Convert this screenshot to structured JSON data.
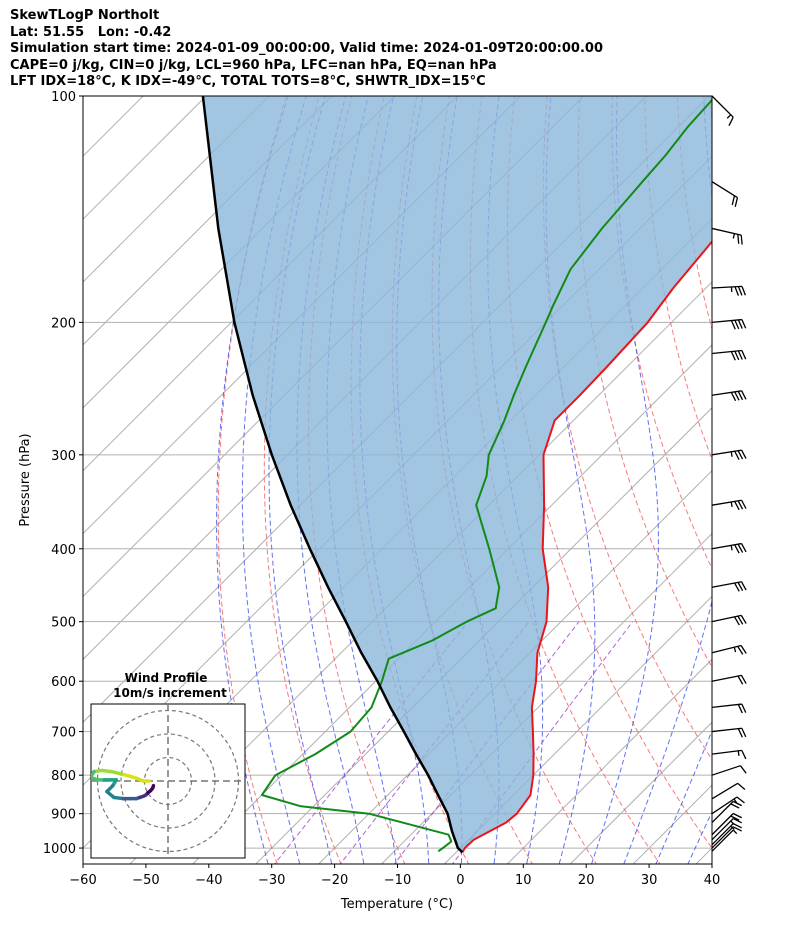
{
  "header": {
    "line1": "SkewTLogP Northolt",
    "line2": "Lat: 51.55   Lon: -0.42",
    "line3": "Simulation start time: 2024-01-09_00:00:00, Valid time: 2024-01-09T20:00:00.00",
    "line4": "CAPE=0 j/kg, CIN=0 j/kg, LCL=960 hPa, LFC=nan hPa, EQ=nan hPa",
    "line5": "LFT IDX=18°C, K IDX=-49°C, TOTAL TOTS=8°C, SHWTR_IDX=15°C"
  },
  "chart_data": {
    "type": "line",
    "xlabel": "Temperature (°C)",
    "ylabel": "Pressure (hPa)",
    "xlim": [
      -60,
      40
    ],
    "ylim": [
      1050,
      100
    ],
    "yscale": "log",
    "x_ticks": [
      "−60",
      "−50",
      "−40",
      "−30",
      "−20",
      "−10",
      "0",
      "10",
      "20",
      "30",
      "40"
    ],
    "y_ticks": [
      "100",
      "200",
      "300",
      "400",
      "500",
      "600",
      "700",
      "800",
      "900",
      "1000"
    ],
    "y_tick_values": [
      100,
      200,
      300,
      400,
      500,
      600,
      700,
      800,
      900,
      1000
    ],
    "grid": true,
    "colors": {
      "temperature": "#e8151b",
      "dewpoint": "#118a17",
      "parcel": "#000000",
      "cape_fill": "#8bb8d9",
      "dry_adiabat": "#f25a5a",
      "moist_adiabat": "#3a4ef0",
      "mixing_ratio": "#9a3fd0",
      "isotherm": "#b0b0b0"
    },
    "series": [
      {
        "key": "temperature",
        "pressure": [
          1013,
          1000,
          975,
          950,
          925,
          900,
          850,
          800,
          750,
          700,
          650,
          600,
          550,
          500,
          450,
          400,
          350,
          300,
          270,
          250,
          230,
          200,
          180,
          160,
          150,
          140,
          130,
          120,
          110,
          100
        ],
        "values": [
          1.0,
          0.7,
          0.8,
          2.0,
          3.2,
          3.5,
          2.7,
          0.0,
          -3.3,
          -7.0,
          -11.0,
          -14.5,
          -18.8,
          -22.3,
          -27.5,
          -34.5,
          -41.2,
          -49.3,
          -53.0,
          -53.0,
          -53.2,
          -53.8,
          -55.2,
          -56.2,
          -56.8,
          -56.5,
          -58.0,
          -59.0,
          -61.2,
          -63.3
        ]
      },
      {
        "key": "dewpoint",
        "pressure": [
          1010,
          1000,
          980,
          960,
          900,
          880,
          850,
          800,
          750,
          700,
          650,
          600,
          560,
          530,
          500,
          480,
          450,
          400,
          350,
          320,
          300,
          270,
          250,
          230,
          200,
          190,
          170,
          150,
          130,
          120,
          110,
          100
        ],
        "values": [
          -3.0,
          -2.8,
          -2.5,
          -4.0,
          -20.0,
          -32.0,
          -40.0,
          -41.0,
          -38.0,
          -36.0,
          -36.5,
          -39.0,
          -41.5,
          -37.5,
          -35.0,
          -32.5,
          -35.3,
          -43.0,
          -52.0,
          -55.0,
          -58.0,
          -61.0,
          -63.5,
          -66.0,
          -70.0,
          -71.5,
          -74.5,
          -76.0,
          -77.0,
          -77.5,
          -78.5,
          -79.0
        ]
      },
      {
        "key": "parcel",
        "pressure": [
          1013,
          1000,
          950,
          900,
          850,
          800,
          750,
          700,
          650,
          600,
          550,
          500,
          450,
          400,
          350,
          300,
          250,
          200,
          150,
          100
        ],
        "values": [
          1.0,
          -0.4,
          -4.0,
          -7.5,
          -12.0,
          -16.7,
          -22.0,
          -27.5,
          -33.5,
          -39.7,
          -46.8,
          -54.2,
          -62.5,
          -71.5,
          -81.5,
          -92.5,
          -105.0,
          -119.5,
          -137.0,
          -160.5
        ]
      }
    ],
    "wind_barbs": {
      "pressure": [
        1010,
        1000,
        990,
        975,
        960,
        925,
        900,
        860,
        800,
        750,
        700,
        650,
        600,
        550,
        500,
        450,
        400,
        350,
        300,
        250,
        220,
        200,
        180,
        150,
        130,
        100
      ],
      "u_ms": [
        2,
        3,
        5,
        6,
        7,
        7,
        6,
        5,
        6,
        8,
        9,
        9,
        10,
        12,
        14,
        16,
        17,
        18,
        19,
        20,
        20,
        21,
        19,
        13,
        8,
        6
      ],
      "v_ms": [
        2,
        3,
        5,
        6,
        7,
        7,
        4,
        3,
        2,
        1,
        1,
        1,
        2,
        3,
        3,
        3,
        3,
        3,
        3,
        3,
        2,
        2,
        1,
        -3,
        -5,
        -6
      ]
    },
    "hodograph": {
      "title": "Wind Profile",
      "subtitle": "10m/s increment",
      "ring_step_ms": 10,
      "rings": 3,
      "u_ms": [
        -8.0,
        -10.5,
        -13.0,
        -16.0,
        -20.0,
        -24.0,
        -28.0,
        -31.5,
        -33.0,
        -30.0,
        -27.0,
        -24.0,
        -22.0,
        -23.5,
        -26.0,
        -23.0,
        -19.0,
        -16.0,
        -13.5,
        -12.0,
        -10.5,
        -9.5,
        -8.5,
        -7.3,
        -6.5,
        -6.2
      ],
      "v_ms": [
        0.0,
        0.0,
        1.0,
        2.0,
        3.0,
        4.0,
        4.5,
        4.0,
        1.5,
        0.5,
        0.5,
        0.5,
        0.5,
        -2.0,
        -4.5,
        -7.0,
        -7.5,
        -7.5,
        -7.5,
        -7.0,
        -6.5,
        -6.0,
        -5.0,
        -4.0,
        -3.0,
        -2.0
      ]
    }
  }
}
